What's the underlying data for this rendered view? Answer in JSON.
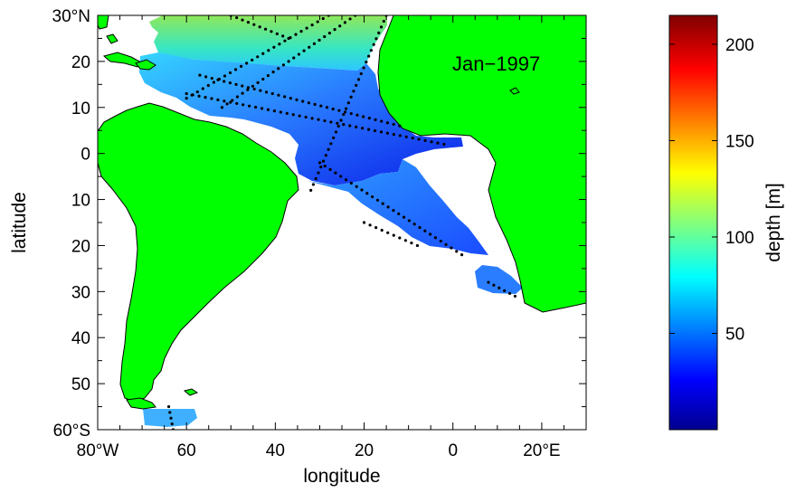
{
  "map": {
    "annotation": "Jan−1997",
    "xlabel": "longitude",
    "ylabel": "latitude",
    "x_ticks": [
      {
        "value": -80,
        "label": "80°W"
      },
      {
        "value": -60,
        "label": "60"
      },
      {
        "value": -40,
        "label": "40"
      },
      {
        "value": -20,
        "label": "20"
      },
      {
        "value": 0,
        "label": "0"
      },
      {
        "value": 20,
        "label": "20°E"
      }
    ],
    "y_ticks": [
      {
        "value": 30,
        "label": "30°N"
      },
      {
        "value": 20,
        "label": "20"
      },
      {
        "value": 10,
        "label": "10"
      },
      {
        "value": 0,
        "label": "0"
      },
      {
        "value": -10,
        "label": "10"
      },
      {
        "value": -20,
        "label": "20"
      },
      {
        "value": -30,
        "label": "30"
      },
      {
        "value": -40,
        "label": "40"
      },
      {
        "value": -50,
        "label": "50"
      },
      {
        "value": -60,
        "label": "60°S"
      }
    ],
    "xlim": [
      -80,
      30
    ],
    "ylim": [
      -60,
      30
    ],
    "land_color": "#00ff00",
    "ocean_color": "#ffffff"
  },
  "colorbar": {
    "label": "depth [m]",
    "ticks": [
      50,
      100,
      150,
      200
    ],
    "range": [
      0,
      215
    ],
    "colormap": "jet"
  },
  "chart_data": {
    "type": "heatmap",
    "xlabel": "longitude",
    "ylabel": "latitude",
    "xlim": [
      -80,
      30
    ],
    "ylim": [
      -60,
      30
    ],
    "value_label": "depth [m]",
    "value_range": [
      0,
      215
    ],
    "regions": [
      {
        "lon": [
          -62,
          -15
        ],
        "lat": [
          22,
          30
        ],
        "depth": 90
      },
      {
        "lon": [
          -65,
          -20
        ],
        "lat": [
          12,
          22
        ],
        "depth": 65
      },
      {
        "lon": [
          -40,
          -15
        ],
        "lat": [
          5,
          18
        ],
        "depth": 30
      },
      {
        "lon": [
          -33,
          -5
        ],
        "lat": [
          -10,
          5
        ],
        "depth": 45
      },
      {
        "lon": [
          -20,
          5
        ],
        "lat": [
          -22,
          -5
        ],
        "depth": 40
      },
      {
        "lon": [
          5,
          15
        ],
        "lat": [
          -30,
          -25
        ],
        "depth": 55
      },
      {
        "lon": [
          -68,
          -58
        ],
        "lat": [
          -60,
          -56
        ],
        "depth": 70
      }
    ],
    "observation_tracks": [
      {
        "from": [
          -15,
          30
        ],
        "to": [
          -32,
          -8
        ]
      },
      {
        "from": [
          -28,
          30
        ],
        "to": [
          -60,
          12
        ]
      },
      {
        "from": [
          -60,
          13
        ],
        "to": [
          -2,
          2
        ]
      },
      {
        "from": [
          -57,
          17
        ],
        "to": [
          -12,
          6
        ]
      },
      {
        "from": [
          -22,
          30
        ],
        "to": [
          -52,
          10
        ]
      },
      {
        "from": [
          -37,
          25
        ],
        "to": [
          -50,
          30
        ]
      },
      {
        "from": [
          -30,
          -2
        ],
        "to": [
          2,
          -22
        ]
      },
      {
        "from": [
          -20,
          -15
        ],
        "to": [
          -8,
          -20
        ]
      },
      {
        "from": [
          8,
          -28
        ],
        "to": [
          14,
          -31
        ]
      },
      {
        "from": [
          -64,
          -55
        ],
        "to": [
          -63,
          -60
        ]
      }
    ]
  }
}
